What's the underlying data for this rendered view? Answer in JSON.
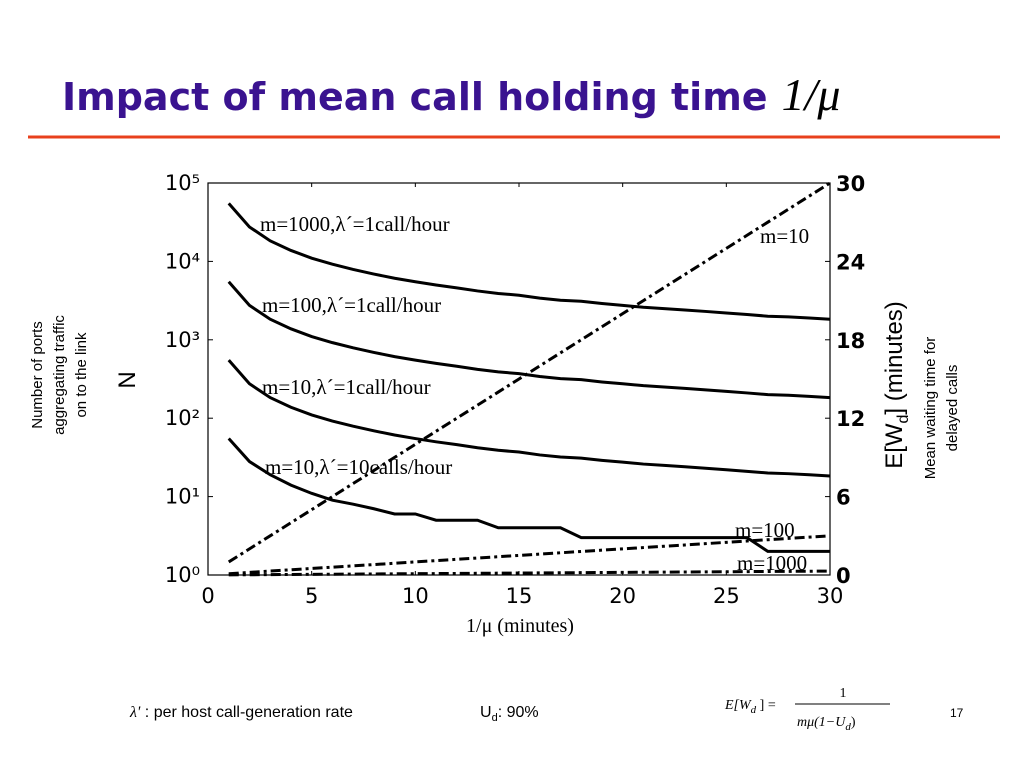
{
  "slide": {
    "title": [
      "Impact of mean call holding time",
      "1/μ"
    ],
    "lambda_note": [
      "λ'",
      " : per host call-generation rate"
    ],
    "utilization": [
      "U",
      "d",
      ": 90%"
    ],
    "formula": {
      "lhs": [
        "E[W",
        "d",
        " ] ="
      ],
      "numerator": "1",
      "denominator": [
        "mμ(1−U",
        "d",
        ")"
      ]
    },
    "page": "17"
  },
  "chart_data": {
    "type": "line",
    "xlabel": "1/μ (minutes)",
    "ylabel": "N",
    "ylabel_note": [
      "Number of ports",
      "aggregating traffic",
      "on to the link"
    ],
    "y2label": [
      "E[W",
      "d",
      "] (minutes)"
    ],
    "y2label_note": [
      "Mean waiting time for",
      "delayed calls"
    ],
    "yscale": "log",
    "xlim": [
      0,
      30
    ],
    "xticks": [
      0,
      5,
      10,
      15,
      20,
      25,
      30
    ],
    "ylim": [
      1,
      100000
    ],
    "yticks": [
      {
        "value": 1,
        "label": "10⁰"
      },
      {
        "value": 10,
        "label": "10¹"
      },
      {
        "value": 100,
        "label": "10²"
      },
      {
        "value": 1000,
        "label": "10³"
      },
      {
        "value": 10000,
        "label": "10⁴"
      },
      {
        "value": 100000,
        "label": "10⁵"
      }
    ],
    "y2lim": [
      0,
      30
    ],
    "y2ticks": [
      0,
      6,
      12,
      18,
      24,
      30
    ],
    "x": [
      1,
      2,
      3,
      4,
      5,
      6,
      7,
      8,
      9,
      10,
      11,
      12,
      13,
      14,
      15,
      16,
      17,
      18,
      19,
      20,
      21,
      22,
      23,
      24,
      25,
      26,
      27,
      28,
      29,
      30
    ],
    "series": [
      {
        "name": "m=1000,λ´=1call/hour",
        "color": "#000000",
        "style": "solid",
        "values": [
          55000,
          27500,
          18300,
          13800,
          11000,
          9200,
          7900,
          6900,
          6100,
          5500,
          5000,
          4600,
          4200,
          3900,
          3700,
          3400,
          3200,
          3100,
          2900,
          2750,
          2600,
          2500,
          2400,
          2300,
          2200,
          2100,
          2000,
          1960,
          1900,
          1830
        ]
      },
      {
        "name": "m=100,λ´=1call/hour",
        "color": "#000000",
        "style": "solid",
        "values": [
          5500,
          2750,
          1830,
          1380,
          1100,
          920,
          790,
          690,
          610,
          550,
          500,
          460,
          420,
          390,
          370,
          340,
          320,
          310,
          290,
          275,
          260,
          250,
          240,
          230,
          220,
          210,
          200,
          196,
          190,
          183
        ]
      },
      {
        "name": "m=10,λ´=1call/hour",
        "color": "#000000",
        "style": "solid",
        "values": [
          550,
          275,
          183,
          138,
          110,
          92,
          79,
          69,
          61,
          55,
          50,
          46,
          42,
          39,
          37,
          34,
          32,
          31,
          29,
          27.5,
          26,
          25,
          24,
          23,
          22,
          21,
          20,
          19.6,
          19,
          18.3
        ]
      },
      {
        "name": "m=10,λ´=10calls/hour",
        "color": "#000000",
        "style": "solid",
        "values": [
          55,
          28,
          19,
          14,
          11,
          9,
          8,
          7,
          6,
          6,
          5,
          5,
          5,
          4,
          4,
          4,
          4,
          3,
          3,
          3,
          3,
          3,
          3,
          3,
          3,
          3,
          2,
          2,
          2,
          2
        ]
      },
      {
        "name": "m=10",
        "color": "#000000",
        "style": "dashdot",
        "axis": "y2",
        "values": [
          1,
          2,
          3,
          4,
          5,
          6,
          7,
          8,
          9,
          10,
          11,
          12,
          13,
          14,
          15,
          16,
          17,
          18,
          19,
          20,
          21,
          22,
          23,
          24,
          25,
          26,
          27,
          28,
          29,
          30
        ]
      },
      {
        "name": "m=100",
        "color": "#000000",
        "style": "dashdot",
        "axis": "y2",
        "values": [
          0.1,
          0.2,
          0.3,
          0.4,
          0.5,
          0.6,
          0.7,
          0.8,
          0.9,
          1,
          1.1,
          1.2,
          1.3,
          1.4,
          1.5,
          1.6,
          1.7,
          1.8,
          1.9,
          2,
          2.1,
          2.2,
          2.3,
          2.4,
          2.5,
          2.6,
          2.7,
          2.8,
          2.9,
          3
        ]
      },
      {
        "name": "m=1000",
        "color": "#000000",
        "style": "dashdot",
        "axis": "y2",
        "values": [
          0.01,
          0.02,
          0.03,
          0.04,
          0.05,
          0.06,
          0.07,
          0.08,
          0.09,
          0.1,
          0.11,
          0.12,
          0.13,
          0.14,
          0.15,
          0.16,
          0.17,
          0.18,
          0.19,
          0.2,
          0.21,
          0.22,
          0.23,
          0.24,
          0.25,
          0.26,
          0.27,
          0.28,
          0.29,
          0.3
        ]
      }
    ]
  }
}
